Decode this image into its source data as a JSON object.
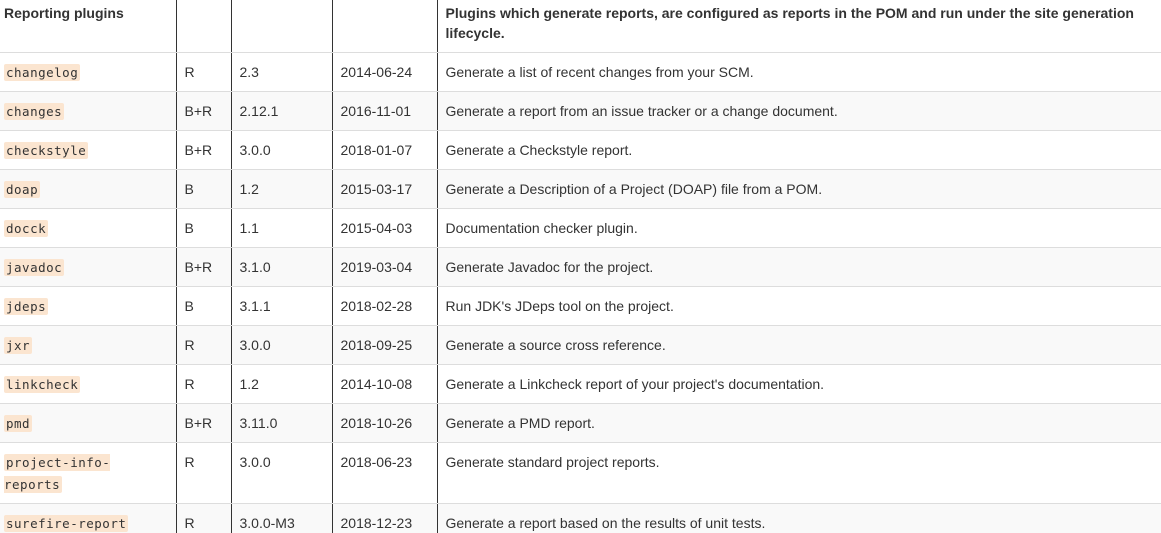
{
  "table": {
    "headers": [
      "Reporting plugins",
      "",
      "",
      "",
      "Plugins which generate reports, are configured as reports in the POM and run under the site generation lifecycle."
    ],
    "rows": [
      {
        "plugin": "changelog",
        "type": "R",
        "version": "2.3",
        "date": "2014-06-24",
        "description": "Generate a list of recent changes from your SCM."
      },
      {
        "plugin": "changes",
        "type": "B+R",
        "version": "2.12.1",
        "date": "2016-11-01",
        "description": "Generate a report from an issue tracker or a change document."
      },
      {
        "plugin": "checkstyle",
        "type": "B+R",
        "version": "3.0.0",
        "date": "2018-01-07",
        "description": "Generate a Checkstyle report."
      },
      {
        "plugin": "doap",
        "type": "B",
        "version": "1.2",
        "date": "2015-03-17",
        "description": "Generate a Description of a Project (DOAP) file from a POM."
      },
      {
        "plugin": "docck",
        "type": "B",
        "version": "1.1",
        "date": "2015-04-03",
        "description": "Documentation checker plugin."
      },
      {
        "plugin": "javadoc",
        "type": "B+R",
        "version": "3.1.0",
        "date": "2019-03-04",
        "description": "Generate Javadoc for the project."
      },
      {
        "plugin": "jdeps",
        "type": "B",
        "version": "3.1.1",
        "date": "2018-02-28",
        "description": "Run JDK's JDeps tool on the project."
      },
      {
        "plugin": "jxr",
        "type": "R",
        "version": "3.0.0",
        "date": "2018-09-25",
        "description": "Generate a source cross reference."
      },
      {
        "plugin": "linkcheck",
        "type": "R",
        "version": "1.2",
        "date": "2014-10-08",
        "description": "Generate a Linkcheck report of your project's documentation."
      },
      {
        "plugin": "pmd",
        "type": "B+R",
        "version": "3.11.0",
        "date": "2018-10-26",
        "description": "Generate a PMD report."
      },
      {
        "plugin": "project-info-reports",
        "type": "R",
        "version": "3.0.0",
        "date": "2018-06-23",
        "description": "Generate standard project reports."
      },
      {
        "plugin": "surefire-report",
        "type": "R",
        "version": "3.0.0-M3",
        "date": "2018-12-23",
        "description": "Generate a report based on the results of unit tests."
      }
    ]
  }
}
